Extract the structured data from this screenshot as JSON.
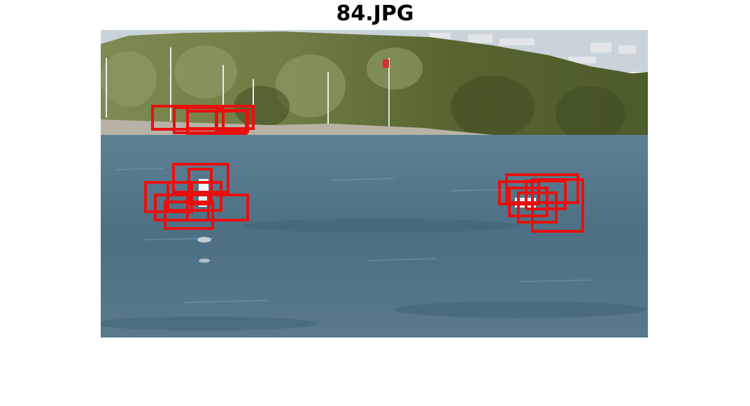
{
  "figure": {
    "title": "84.JPG"
  },
  "colors": {
    "detection_box": "#e8100e",
    "water": "#4f7388",
    "foliage": "#5b6b36",
    "sky": "#c9d3da"
  }
}
